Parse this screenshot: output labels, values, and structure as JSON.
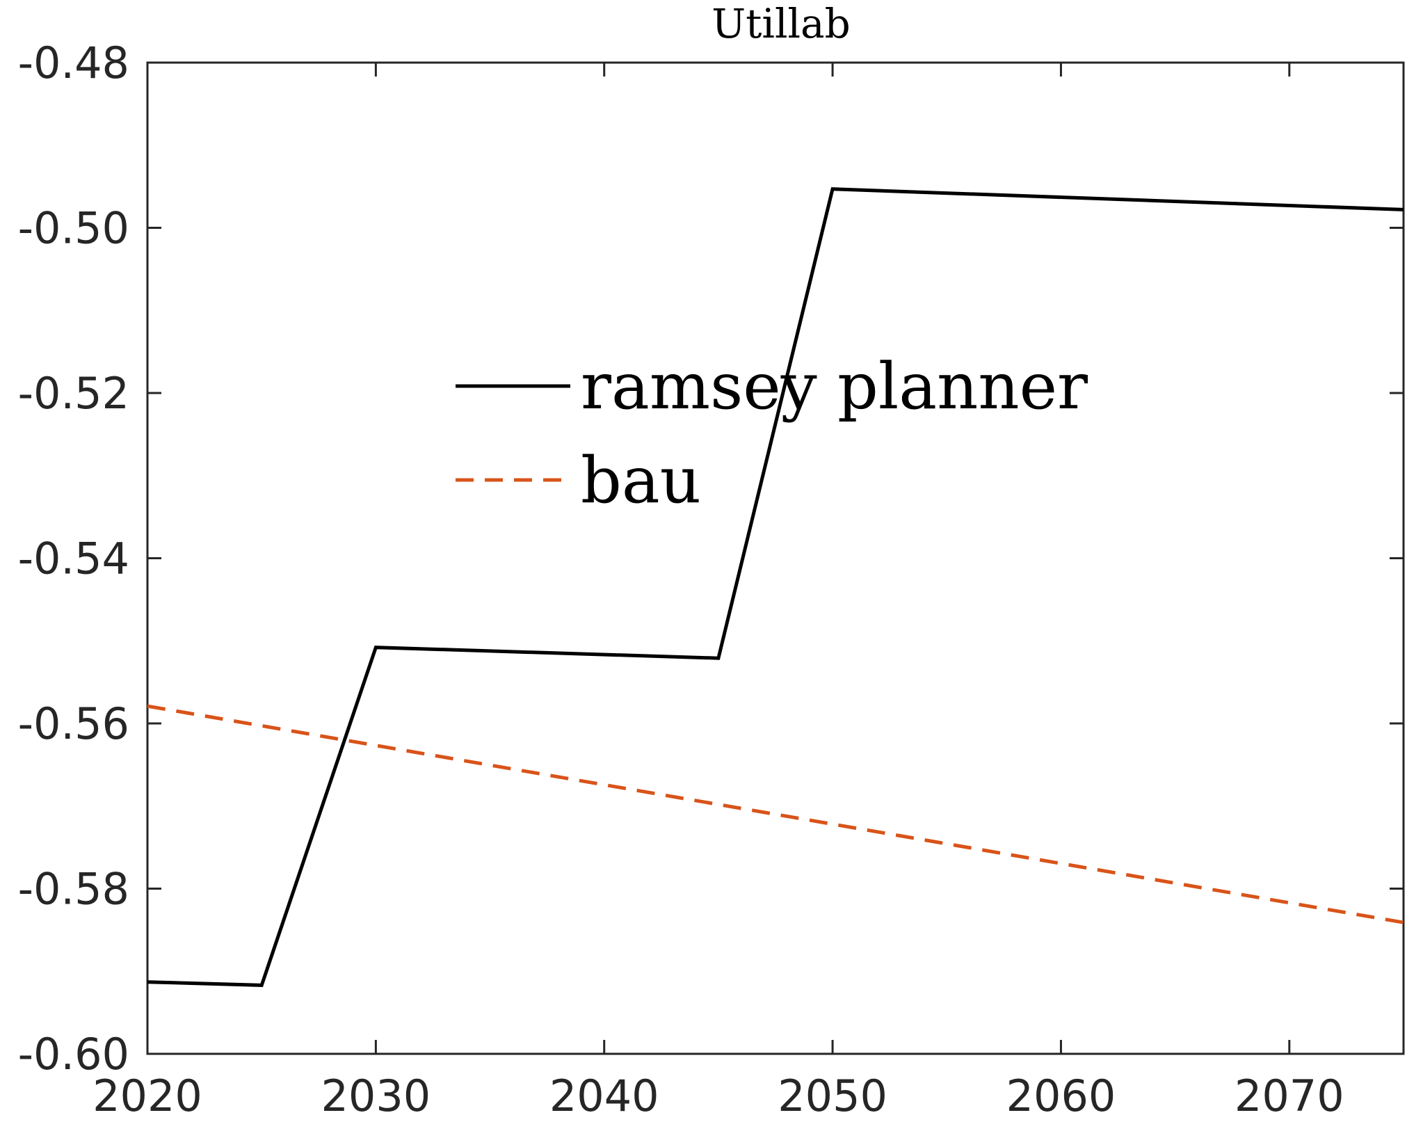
{
  "chart_data": {
    "type": "line",
    "title": "Utillab",
    "xlabel": "",
    "ylabel": "",
    "xlim": [
      2020,
      2075
    ],
    "ylim": [
      -0.6,
      -0.48
    ],
    "xticks": [
      2020,
      2030,
      2040,
      2050,
      2060,
      2070
    ],
    "yticks": [
      -0.6,
      -0.58,
      -0.56,
      -0.54,
      -0.52,
      -0.5,
      -0.48
    ],
    "xtick_labels": [
      "2020",
      "2030",
      "2040",
      "2050",
      "2060",
      "2070"
    ],
    "ytick_labels": [
      "-0.60",
      "-0.58",
      "-0.56",
      "-0.54",
      "-0.52",
      "-0.50",
      "-0.48"
    ],
    "grid": false,
    "legend_position": "center",
    "series": [
      {
        "name": "ramsey planner",
        "color": "#000000",
        "style": "solid",
        "x": [
          2020,
          2025,
          2030,
          2045,
          2050,
          2075
        ],
        "y": [
          -0.5913,
          -0.5917,
          -0.5508,
          -0.5521,
          -0.4953,
          -0.4978
        ]
      },
      {
        "name": "bau",
        "color": "#D95319",
        "style": "dashed",
        "x": [
          2020,
          2075
        ],
        "y": [
          -0.5579,
          -0.5841
        ]
      }
    ]
  }
}
